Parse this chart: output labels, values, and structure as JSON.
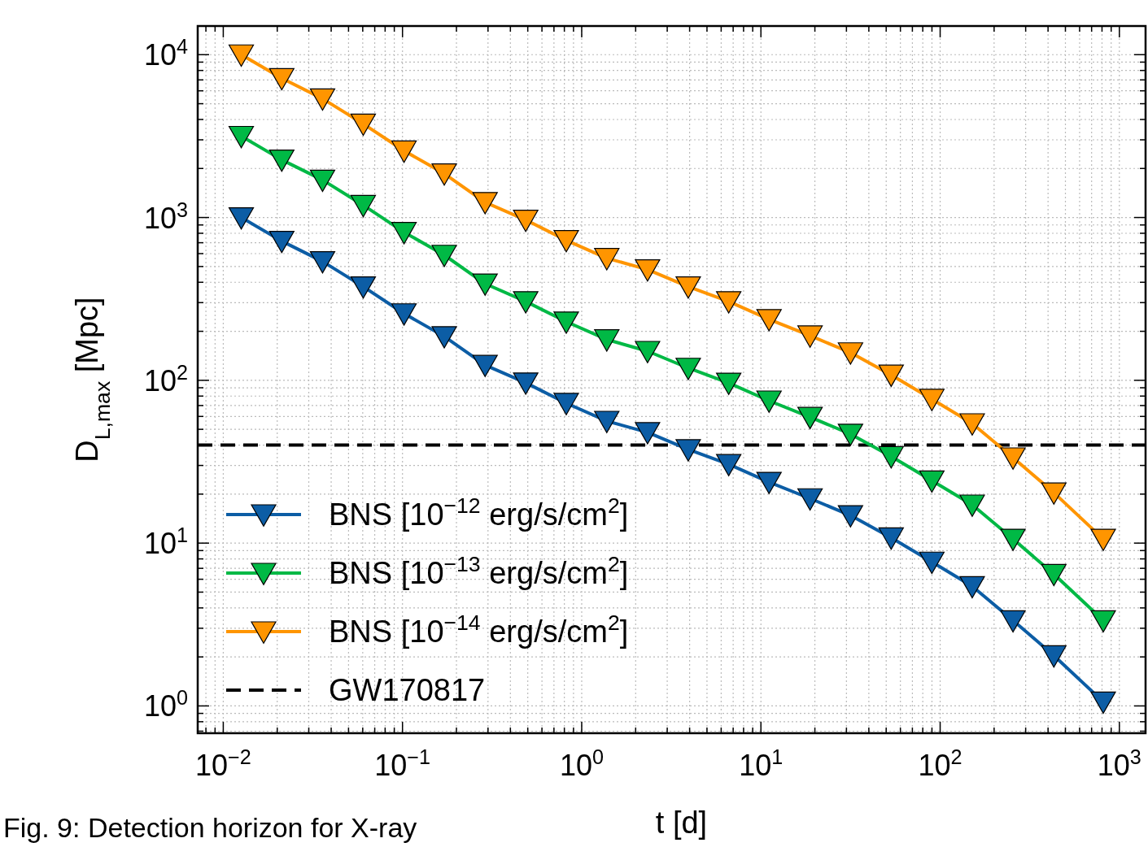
{
  "chart_data": {
    "type": "line",
    "xlabel": "t [d]",
    "ylabel": "D$_{L,max}$ [Mpc]",
    "annotations": [
      "Fig. 9: Detection horizon for X-ray"
    ],
    "log": "xy",
    "grid": true,
    "legend": "bottom left",
    "marker": "triangle",
    "line_style": "solid",
    "xlim": [
      0.0072,
      1400
    ],
    "ylim": [
      0.68,
      15000
    ],
    "xticks": [
      {
        "value": 0.01,
        "label": "10$^{−2}$"
      },
      {
        "value": 0.1,
        "label": "10$^{−1}$"
      },
      {
        "value": 1,
        "label": "10$^{0}$"
      },
      {
        "value": 10,
        "label": "10$^{1}$"
      },
      {
        "value": 100,
        "label": "10$^{2}$"
      },
      {
        "value": 1000,
        "label": "10$^{3}$"
      }
    ],
    "yticks": [
      {
        "value": 1,
        "label": "10$^{0}$"
      },
      {
        "value": 10,
        "label": "10$^{1}$"
      },
      {
        "value": 100,
        "label": "10$^{2}$"
      },
      {
        "value": 1000,
        "label": "10$^{3}$"
      },
      {
        "value": 10000,
        "label": "10$^{4}$"
      }
    ],
    "x": [
      0.0126,
      0.0212,
      0.0358,
      0.0604,
      0.102,
      0.171,
      0.289,
      0.487,
      0.82,
      1.38,
      2.33,
      3.93,
      6.61,
      11.1,
      18.8,
      31.6,
      53.3,
      89.9,
      151,
      255,
      431,
      813
    ],
    "series": [
      {
        "name": "BNS [10$^{−12}$ erg/s/cm$^{2}$]",
        "color": "#0c5da5",
        "values": [
          1000,
          716,
          537,
          376,
          257,
          186,
          124,
          96.6,
          72.4,
          56.2,
          47.9,
          37.6,
          30.5,
          23.7,
          18.8,
          14.8,
          10.8,
          7.67,
          5.43,
          3.35,
          2.04,
          1.06
        ]
      },
      {
        "name": "BNS [10$^{−13}$ erg/s/cm$^{2}$]",
        "color": "#00b945",
        "values": [
          3160,
          2260,
          1700,
          1190,
          812,
          588,
          392,
          305,
          229,
          178,
          151,
          119,
          96.4,
          74.9,
          59.4,
          46.8,
          34.1,
          24.2,
          17.2,
          10.6,
          6.45,
          3.35
        ]
      },
      {
        "name": "BNS [10$^{−14}$ erg/s/cm$^{2}$]",
        "color": "#ff9500",
        "values": [
          10000,
          7160,
          5370,
          3760,
          2570,
          1860,
          1240,
          966,
          724,
          562,
          479,
          376,
          305,
          237,
          188,
          148,
          108,
          76.7,
          54.3,
          33.5,
          20.4,
          10.6
        ]
      }
    ],
    "ref_lines": [
      {
        "axis": "y",
        "value": 40,
        "label": "GW170817",
        "color": "#000000",
        "line_style": "dashed"
      }
    ]
  }
}
